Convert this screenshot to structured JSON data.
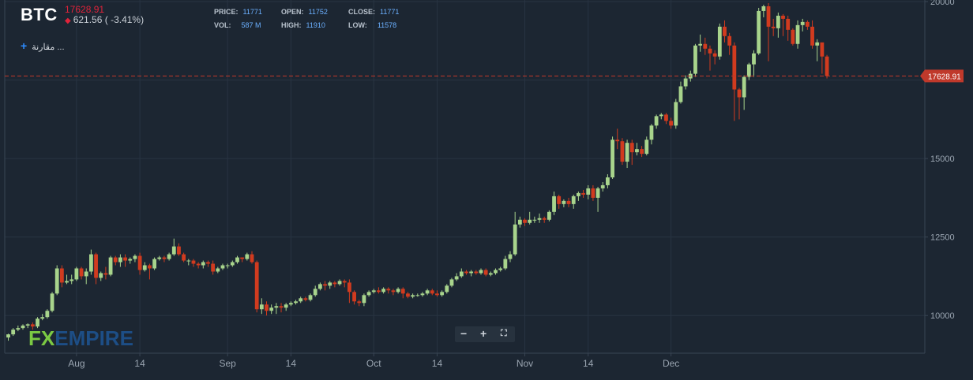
{
  "header": {
    "symbol": "BTC",
    "last_price": "17628.91",
    "change": "621.56 ( -3.41%)"
  },
  "ohlc": {
    "price_label": "PRICE:",
    "price": "11771",
    "vol_label": "VOL:",
    "vol": "587 M",
    "open_label": "OPEN:",
    "open": "11752",
    "high_label": "HIGH:",
    "high": "11910",
    "close_label": "CLOSE:",
    "close": "11771",
    "low_label": "LOW:",
    "low": "11578"
  },
  "compare_label": "مقارنة ...",
  "logo": {
    "fx": "FX",
    "empire": "EMPIRE"
  },
  "zoom": {
    "minus": "−",
    "plus": "+",
    "fullscreen": "⛶"
  },
  "colors": {
    "background": "#1c2632",
    "up": "#a8d48c",
    "down": "#d13b1f",
    "grid": "#283442",
    "price_line": "#c0392b",
    "axis_text": "#9aa5b1"
  },
  "chart_data": {
    "type": "candlestick",
    "x_labels": [
      "Aug",
      "14",
      "Sep",
      "14",
      "Oct",
      "14",
      "Nov",
      "14",
      "Dec"
    ],
    "x_label_days": [
      14,
      27,
      45,
      58,
      75,
      88,
      106,
      119,
      136
    ],
    "y_ticks": [
      10000,
      12500,
      15000,
      17500,
      20000
    ],
    "y_tick_labels": [
      "10000",
      "12500",
      "15000",
      "",
      "20000"
    ],
    "ylim": [
      8800,
      20050
    ],
    "current_price": 17628.91,
    "current_price_label": "17628.91",
    "grid": true,
    "ohlc": [
      [
        9300,
        9400,
        9200,
        9420
      ],
      [
        9400,
        9550,
        9350,
        9600
      ],
      [
        9550,
        9600,
        9500,
        9680
      ],
      [
        9600,
        9680,
        9550,
        9720
      ],
      [
        9680,
        9720,
        9600,
        9750
      ],
      [
        9720,
        9650,
        9550,
        9780
      ],
      [
        9650,
        9900,
        9600,
        9950
      ],
      [
        9900,
        9950,
        9850,
        10050
      ],
      [
        9950,
        10150,
        9900,
        10200
      ],
      [
        10150,
        10700,
        10100,
        10750
      ],
      [
        10700,
        11500,
        10650,
        11600
      ],
      [
        11500,
        11050,
        10900,
        11600
      ],
      [
        11050,
        11100,
        11000,
        11300
      ],
      [
        11100,
        11150,
        11000,
        11300
      ],
      [
        11150,
        11500,
        11100,
        11550
      ],
      [
        11500,
        11250,
        11150,
        11550
      ],
      [
        11250,
        11400,
        11000,
        11500
      ],
      [
        11400,
        11950,
        11300,
        12100
      ],
      [
        11950,
        11200,
        11000,
        12000
      ],
      [
        11200,
        11350,
        11100,
        11400
      ],
      [
        11350,
        11300,
        11150,
        11550
      ],
      [
        11300,
        11850,
        11250,
        11900
      ],
      [
        11850,
        11700,
        11600,
        11900
      ],
      [
        11700,
        11850,
        11550,
        11950
      ],
      [
        11850,
        11750,
        11550,
        11950
      ],
      [
        11750,
        11800,
        11650,
        11850
      ],
      [
        11800,
        11900,
        11700,
        11950
      ],
      [
        11900,
        11450,
        11300,
        12000
      ],
      [
        11450,
        11600,
        11400,
        11700
      ],
      [
        11600,
        11500,
        11150,
        11650
      ],
      [
        11500,
        11800,
        11450,
        11850
      ],
      [
        11800,
        11850,
        11750,
        11900
      ],
      [
        11850,
        11800,
        11700,
        11900
      ],
      [
        11800,
        11950,
        11750,
        12000
      ],
      [
        11950,
        12200,
        11900,
        12450
      ],
      [
        12200,
        11950,
        11900,
        12300
      ],
      [
        11950,
        11750,
        11700,
        12000
      ],
      [
        11750,
        11750,
        11600,
        11800
      ],
      [
        11750,
        11650,
        11550,
        11800
      ],
      [
        11650,
        11600,
        11500,
        11700
      ],
      [
        11600,
        11700,
        11500,
        11750
      ],
      [
        11700,
        11650,
        11550,
        11750
      ],
      [
        11650,
        11400,
        11300,
        11750
      ],
      [
        11400,
        11500,
        11350,
        11550
      ],
      [
        11500,
        11600,
        11450,
        11650
      ],
      [
        11600,
        11600,
        11500,
        11650
      ],
      [
        11600,
        11700,
        11550,
        11750
      ],
      [
        11700,
        11850,
        11650,
        11900
      ],
      [
        11850,
        11800,
        11700,
        11850
      ],
      [
        11800,
        11950,
        11750,
        12000
      ],
      [
        11950,
        11700,
        11650,
        12050
      ],
      [
        11700,
        10200,
        10100,
        11750
      ],
      [
        10200,
        10350,
        10050,
        10550
      ],
      [
        10350,
        10150,
        10000,
        10450
      ],
      [
        10150,
        10250,
        10050,
        10350
      ],
      [
        10250,
        10300,
        10050,
        10400
      ],
      [
        10300,
        10250,
        10100,
        10400
      ],
      [
        10250,
        10350,
        10150,
        10400
      ],
      [
        10350,
        10400,
        10300,
        10450
      ],
      [
        10400,
        10450,
        10350,
        10500
      ],
      [
        10450,
        10550,
        10400,
        10600
      ],
      [
        10550,
        10500,
        10450,
        10600
      ],
      [
        10500,
        10650,
        10450,
        10700
      ],
      [
        10650,
        10850,
        10600,
        10950
      ],
      [
        10850,
        11000,
        10800,
        11050
      ],
      [
        11000,
        10950,
        10800,
        11100
      ],
      [
        10950,
        11050,
        10850,
        11100
      ],
      [
        11050,
        11000,
        10900,
        11100
      ],
      [
        11000,
        11100,
        10950,
        11150
      ],
      [
        11100,
        11050,
        10900,
        11150
      ],
      [
        11050,
        10750,
        10400,
        11150
      ],
      [
        10750,
        10450,
        10350,
        10800
      ],
      [
        10450,
        10400,
        10300,
        10500
      ],
      [
        10400,
        10650,
        10300,
        10700
      ],
      [
        10650,
        10750,
        10600,
        10800
      ],
      [
        10750,
        10800,
        10700,
        10850
      ],
      [
        10800,
        10750,
        10700,
        10900
      ],
      [
        10750,
        10850,
        10700,
        10900
      ],
      [
        10850,
        10800,
        10700,
        10900
      ],
      [
        10800,
        10750,
        10650,
        10850
      ],
      [
        10750,
        10850,
        10700,
        10900
      ],
      [
        10850,
        10700,
        10550,
        10900
      ],
      [
        10700,
        10600,
        10550,
        10750
      ],
      [
        10600,
        10650,
        10550,
        10700
      ],
      [
        10650,
        10650,
        10600,
        10700
      ],
      [
        10650,
        10700,
        10600,
        10750
      ],
      [
        10700,
        10800,
        10650,
        10850
      ],
      [
        10800,
        10700,
        10650,
        10850
      ],
      [
        10700,
        10650,
        10600,
        10800
      ],
      [
        10650,
        10750,
        10600,
        10800
      ],
      [
        10750,
        10950,
        10700,
        11000
      ],
      [
        10950,
        11150,
        10900,
        11200
      ],
      [
        11150,
        11250,
        11100,
        11350
      ],
      [
        11250,
        11400,
        11200,
        11500
      ],
      [
        11400,
        11350,
        11300,
        11450
      ],
      [
        11350,
        11400,
        11250,
        11450
      ],
      [
        11400,
        11350,
        11300,
        11450
      ],
      [
        11350,
        11450,
        11300,
        11500
      ],
      [
        11450,
        11300,
        11250,
        11500
      ],
      [
        11300,
        11350,
        11250,
        11400
      ],
      [
        11350,
        11450,
        11300,
        11500
      ],
      [
        11450,
        11500,
        11400,
        11550
      ],
      [
        11500,
        11800,
        11450,
        11900
      ],
      [
        11800,
        11950,
        11700,
        12050
      ],
      [
        11950,
        12900,
        11900,
        13300
      ],
      [
        12900,
        13050,
        12800,
        13150
      ],
      [
        13050,
        12950,
        12850,
        13100
      ],
      [
        12950,
        13050,
        12900,
        13300
      ],
      [
        13050,
        13050,
        12950,
        13150
      ],
      [
        13050,
        13100,
        12950,
        13250
      ],
      [
        13100,
        13050,
        12950,
        13150
      ],
      [
        13050,
        13300,
        13000,
        13350
      ],
      [
        13300,
        13800,
        13200,
        13950
      ],
      [
        13800,
        13550,
        13400,
        13850
      ],
      [
        13550,
        13650,
        13450,
        13700
      ],
      [
        13650,
        13550,
        13450,
        13750
      ],
      [
        13550,
        13800,
        13400,
        13850
      ],
      [
        13800,
        13900,
        13650,
        13950
      ],
      [
        13900,
        13850,
        13750,
        14000
      ],
      [
        13850,
        14050,
        13700,
        14150
      ],
      [
        14050,
        13750,
        13650,
        14150
      ],
      [
        13750,
        14050,
        13300,
        14100
      ],
      [
        14050,
        14150,
        13950,
        14250
      ],
      [
        14150,
        14400,
        14050,
        14500
      ],
      [
        14400,
        15600,
        14350,
        15700
      ],
      [
        15600,
        15550,
        15300,
        15950
      ],
      [
        15550,
        14900,
        14800,
        15650
      ],
      [
        14900,
        15500,
        14700,
        15600
      ],
      [
        15500,
        15200,
        14800,
        15600
      ],
      [
        15200,
        15300,
        15100,
        15500
      ],
      [
        15300,
        15150,
        15050,
        15400
      ],
      [
        15150,
        15600,
        15100,
        15700
      ],
      [
        15600,
        16050,
        15450,
        16100
      ],
      [
        16050,
        16350,
        15950,
        16400
      ],
      [
        16350,
        16400,
        16250,
        16450
      ],
      [
        16400,
        16200,
        16100,
        16450
      ],
      [
        16200,
        16050,
        15950,
        16300
      ],
      [
        16050,
        16800,
        15950,
        16900
      ],
      [
        16800,
        17300,
        16750,
        17450
      ],
      [
        17300,
        17550,
        17200,
        17650
      ],
      [
        17550,
        17700,
        17450,
        17800
      ],
      [
        17700,
        18600,
        17600,
        18650
      ],
      [
        18600,
        18650,
        18400,
        18950
      ],
      [
        18650,
        18500,
        18300,
        18850
      ],
      [
        18500,
        18350,
        17800,
        18600
      ],
      [
        18350,
        18250,
        18000,
        18450
      ],
      [
        18250,
        19200,
        18150,
        19300
      ],
      [
        19200,
        18900,
        18700,
        19400
      ],
      [
        18900,
        18600,
        18300,
        19000
      ],
      [
        18600,
        17200,
        16200,
        18700
      ],
      [
        17200,
        16950,
        16250,
        17250
      ],
      [
        16950,
        17600,
        16550,
        17650
      ],
      [
        17600,
        18000,
        17500,
        18050
      ],
      [
        18000,
        18350,
        17600,
        18450
      ],
      [
        18350,
        19700,
        18300,
        19800
      ],
      [
        19700,
        19850,
        19500,
        19900
      ],
      [
        19850,
        19200,
        18100,
        19950
      ],
      [
        19200,
        19150,
        18900,
        19450
      ],
      [
        19150,
        19550,
        18850,
        19650
      ],
      [
        19550,
        19450,
        18900,
        19600
      ],
      [
        19450,
        19100,
        18750,
        19550
      ],
      [
        19100,
        18650,
        18600,
        19150
      ],
      [
        18650,
        19250,
        18500,
        19400
      ],
      [
        19250,
        19350,
        19050,
        19450
      ],
      [
        19350,
        19200,
        19100,
        19400
      ],
      [
        19200,
        18600,
        18500,
        19400
      ],
      [
        18600,
        18700,
        18100,
        18800
      ],
      [
        18700,
        18250,
        17700,
        18650
      ],
      [
        18250,
        17628.91,
        17550,
        18300
      ]
    ]
  }
}
